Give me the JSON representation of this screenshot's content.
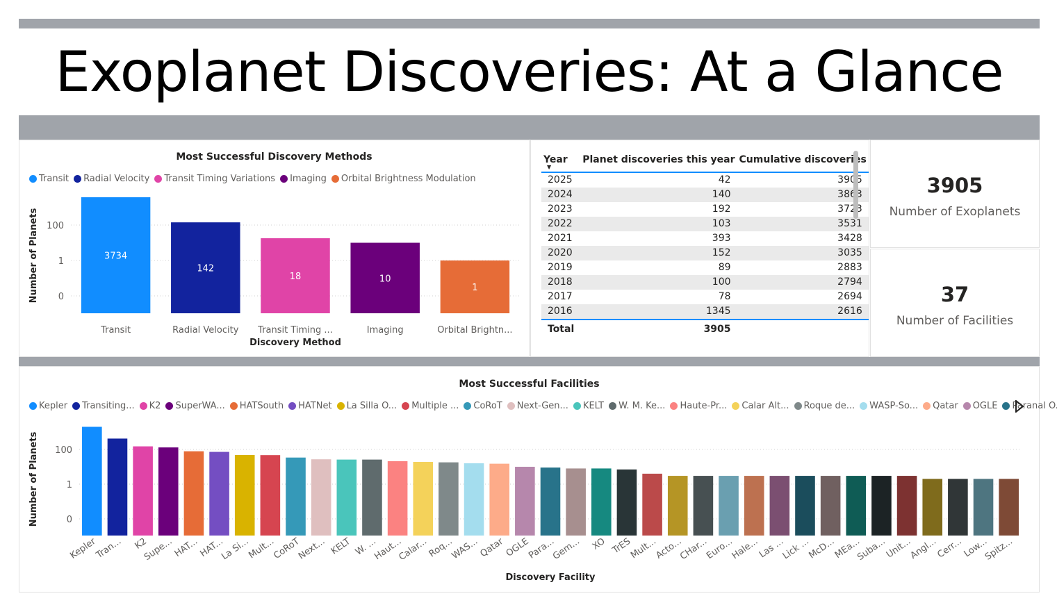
{
  "header": {
    "title": "Exoplanet Discoveries: At a Glance"
  },
  "methods_chart": {
    "chart_data": {
      "type": "bar",
      "title": "Most Successful Discovery Methods",
      "xlabel": "Discovery Method",
      "ylabel": "Number of Planets",
      "y_ticks": [
        "0",
        "1",
        "100"
      ],
      "categories": [
        "Transit",
        "Radial Velocity",
        "Transit Timing ...",
        "Imaging",
        "Orbital Brightn..."
      ],
      "legend": [
        "Transit",
        "Radial Velocity",
        "Transit Timing Variations",
        "Imaging",
        "Orbital Brightness Modulation"
      ],
      "values": [
        3734,
        142,
        18,
        10,
        1
      ],
      "colors": [
        "#118dff",
        "#12239e",
        "#e044a7",
        "#6b007b",
        "#e66c37"
      ],
      "legend_placement": "top-left",
      "grid": true
    }
  },
  "year_table": {
    "columns": [
      "Year",
      "Planet discoveries this year",
      "Cumulative discoveries"
    ],
    "rows": [
      [
        "2025",
        "42",
        "3905"
      ],
      [
        "2024",
        "140",
        "3863"
      ],
      [
        "2023",
        "192",
        "3723"
      ],
      [
        "2022",
        "103",
        "3531"
      ],
      [
        "2021",
        "393",
        "3428"
      ],
      [
        "2020",
        "152",
        "3035"
      ],
      [
        "2019",
        "89",
        "2883"
      ],
      [
        "2018",
        "100",
        "2794"
      ],
      [
        "2017",
        "78",
        "2694"
      ],
      [
        "2016",
        "1345",
        "2616"
      ]
    ],
    "total_label": "Total",
    "total_value": "3905"
  },
  "kpis": [
    {
      "value": "3905",
      "label": "Number of Exoplanets"
    },
    {
      "value": "37",
      "label": "Number of Facilities"
    }
  ],
  "facilities_chart": {
    "chart_data": {
      "type": "bar",
      "title": "Most Successful Facilities",
      "xlabel": "Discovery Facility",
      "ylabel": "Number of Planets",
      "y_ticks": [
        "0",
        "1",
        "100"
      ],
      "legend": [
        "Kepler",
        "Transiting...",
        "K2",
        "SuperWA...",
        "HATSouth",
        "HATNet",
        "La Silla O...",
        "Multiple ...",
        "CoRoT",
        "Next-Gen...",
        "KELT",
        "W. M. Ke...",
        "Haute-Pr...",
        "Calar Alt...",
        "Roque de...",
        "WASP-So...",
        "Qatar",
        "OGLE",
        "Paranal O..."
      ],
      "categories": [
        "Kepler",
        "Tran...",
        "K2",
        "Supe...",
        "HAT...",
        "HAT...",
        "La Si...",
        "Mult...",
        "CoRoT",
        "Next...",
        "KELT",
        "W. ...",
        "Haut...",
        "Calar...",
        "Roq...",
        "WAS...",
        "Qatar",
        "OGLE",
        "Para...",
        "Gem...",
        "XO",
        "TrES",
        "Mult...",
        "Acto...",
        "CHar...",
        "Euro...",
        "Hale...",
        "Las ...",
        "Lick ...",
        "McD...",
        "MEa...",
        "Suba...",
        "Unit...",
        "Angl...",
        "Cerr...",
        "Low...",
        "Spitz..."
      ],
      "values": [
        2000,
        420,
        150,
        130,
        78,
        72,
        48,
        47,
        34,
        27,
        26,
        26,
        21,
        19,
        18,
        16,
        15,
        10,
        9,
        8,
        8,
        7,
        4,
        3,
        3,
        3,
        3,
        3,
        3,
        3,
        3,
        3,
        3,
        2,
        2,
        2,
        2
      ],
      "colors": [
        "#118dff",
        "#12239e",
        "#e044a7",
        "#6b007b",
        "#e66c37",
        "#744ec2",
        "#d9b300",
        "#d64550",
        "#3599b8",
        "#dfbfbf",
        "#4ac5bb",
        "#5f6b6d",
        "#fb8281",
        "#f4d25a",
        "#7f898a",
        "#a4ddee",
        "#fdab89",
        "#b687ac",
        "#28738a",
        "#a78f8f",
        "#168980",
        "#293537",
        "#bb4a4a",
        "#b59525",
        "#475052",
        "#6a9fb0",
        "#bd7150",
        "#7b4f71",
        "#1b4d5c",
        "#706060",
        "#0f5c55",
        "#1c2325",
        "#7d3231",
        "#7f6b1c",
        "#303637",
        "#4e7580",
        "#7e4a36"
      ],
      "legend_placement": "top-left",
      "grid": true
    }
  }
}
